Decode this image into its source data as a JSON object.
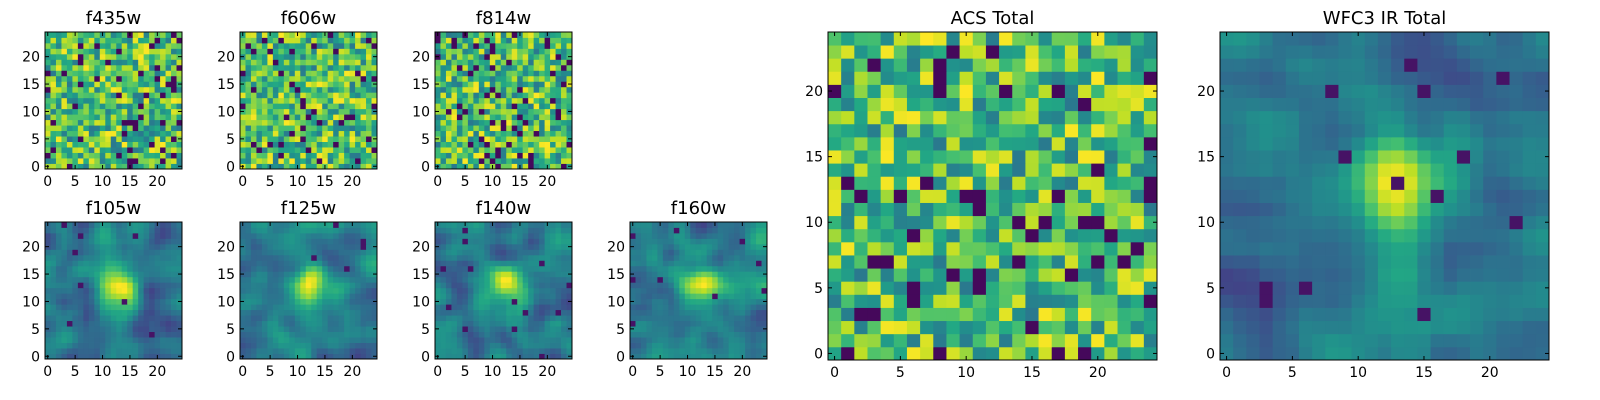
{
  "chart_data": [
    {
      "type": "heatmap",
      "title": "f435w",
      "grid_size": 25,
      "colormap": "viridis",
      "x_ticks": [
        0,
        5,
        10,
        15,
        20
      ],
      "y_ticks": [
        0,
        5,
        10,
        15,
        20
      ],
      "xlim": [
        -0.5,
        24.5
      ],
      "ylim": [
        -0.5,
        24.5
      ],
      "texture": "noisy"
    },
    {
      "type": "heatmap",
      "title": "f606w",
      "grid_size": 25,
      "colormap": "viridis",
      "x_ticks": [
        0,
        5,
        10,
        15,
        20
      ],
      "y_ticks": [
        0,
        5,
        10,
        15,
        20
      ],
      "xlim": [
        -0.5,
        24.5
      ],
      "ylim": [
        -0.5,
        24.5
      ],
      "texture": "noisy"
    },
    {
      "type": "heatmap",
      "title": "f814w",
      "grid_size": 25,
      "colormap": "viridis",
      "x_ticks": [
        0,
        5,
        10,
        15,
        20
      ],
      "y_ticks": [
        0,
        5,
        10,
        15,
        20
      ],
      "xlim": [
        -0.5,
        24.5
      ],
      "ylim": [
        -0.5,
        24.5
      ],
      "texture": "noisy"
    },
    {
      "type": "heatmap",
      "title": "f105w",
      "grid_size": 25,
      "colormap": "viridis",
      "x_ticks": [
        0,
        5,
        10,
        15,
        20
      ],
      "y_ticks": [
        0,
        5,
        10,
        15,
        20
      ],
      "xlim": [
        -0.5,
        24.5
      ],
      "ylim": [
        -0.5,
        24.5
      ],
      "texture": "smooth"
    },
    {
      "type": "heatmap",
      "title": "f125w",
      "grid_size": 25,
      "colormap": "viridis",
      "x_ticks": [
        0,
        5,
        10,
        15,
        20
      ],
      "y_ticks": [
        0,
        5,
        10,
        15,
        20
      ],
      "xlim": [
        -0.5,
        24.5
      ],
      "ylim": [
        -0.5,
        24.5
      ],
      "texture": "smooth"
    },
    {
      "type": "heatmap",
      "title": "f140w",
      "grid_size": 25,
      "colormap": "viridis",
      "x_ticks": [
        0,
        5,
        10,
        15,
        20
      ],
      "y_ticks": [
        0,
        5,
        10,
        15,
        20
      ],
      "xlim": [
        -0.5,
        24.5
      ],
      "ylim": [
        -0.5,
        24.5
      ],
      "texture": "smooth"
    },
    {
      "type": "heatmap",
      "title": "f160w",
      "grid_size": 25,
      "colormap": "viridis",
      "x_ticks": [
        0,
        5,
        10,
        15,
        20
      ],
      "y_ticks": [
        0,
        5,
        10,
        15,
        20
      ],
      "xlim": [
        -0.5,
        24.5
      ],
      "ylim": [
        -0.5,
        24.5
      ],
      "texture": "smooth"
    },
    {
      "type": "heatmap",
      "title": "ACS Total",
      "grid_size": 25,
      "colormap": "viridis",
      "x_ticks": [
        0,
        5,
        10,
        15,
        20
      ],
      "y_ticks": [
        0,
        5,
        10,
        15,
        20
      ],
      "xlim": [
        -0.5,
        24.5
      ],
      "ylim": [
        -0.5,
        24.5
      ],
      "texture": "noisy"
    },
    {
      "type": "heatmap",
      "title": "WFC3 IR Total",
      "grid_size": 25,
      "colormap": "viridis",
      "x_ticks": [
        0,
        5,
        10,
        15,
        20
      ],
      "y_ticks": [
        0,
        5,
        10,
        15,
        20
      ],
      "xlim": [
        -0.5,
        24.5
      ],
      "ylim": [
        -0.5,
        24.5
      ],
      "texture": "smooth"
    }
  ]
}
